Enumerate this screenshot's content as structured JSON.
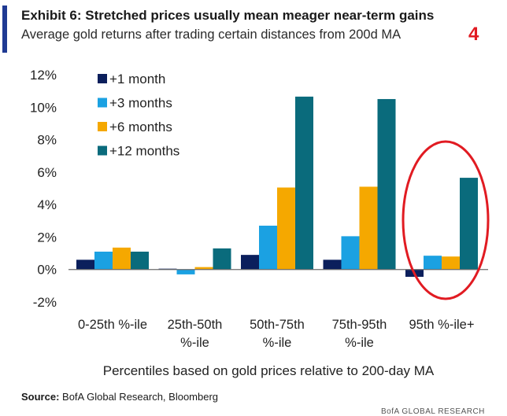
{
  "header": {
    "title": "Exhibit 6: Stretched prices usually mean meager near-term gains",
    "subtitle": "Average gold returns after trading certain distances from 200d MA",
    "page_number": "4"
  },
  "footer": {
    "source_label": "Source:",
    "source_text": "BofA Global Research, Bloomberg",
    "brand": "BofA GLOBAL RESEARCH"
  },
  "colors": {
    "accent": "#1f3a93",
    "page_number": "#e11b22",
    "highlight_circle": "#e11b22"
  },
  "annotation": {
    "type": "circle",
    "highlights_category": "95th %-ile+",
    "color": "#e11b22"
  },
  "chart_data": {
    "type": "bar",
    "title": "",
    "xlabel": "Percentiles based on gold prices relative to 200-day MA",
    "ylabel": "",
    "ylim": [
      -2,
      12
    ],
    "y_ticks": [
      -2,
      0,
      2,
      4,
      6,
      8,
      10,
      12
    ],
    "y_tick_labels": [
      "-2%",
      "0%",
      "2%",
      "4%",
      "6%",
      "8%",
      "10%",
      "12%"
    ],
    "grid": false,
    "legend_position": "top-left",
    "categories": [
      "0-25th %-ile",
      "25th-50th %-ile",
      "50th-75th %-ile",
      "75th-95th %-ile",
      "95th %-ile+"
    ],
    "category_lines": [
      [
        "0-25th %-ile"
      ],
      [
        "25th-50th",
        "%-ile"
      ],
      [
        "50th-75th",
        "%-ile"
      ],
      [
        "75th-95th",
        "%-ile"
      ],
      [
        "95th %-ile+"
      ]
    ],
    "series": [
      {
        "name": "+1 month",
        "color": "#0b1f5c",
        "values": [
          0.6,
          0.05,
          0.9,
          0.6,
          -0.45
        ]
      },
      {
        "name": "+3 months",
        "color": "#1ba1e2",
        "values": [
          1.1,
          -0.3,
          2.7,
          2.05,
          0.85
        ]
      },
      {
        "name": "+6 months",
        "color": "#f5a800",
        "values": [
          1.35,
          0.15,
          5.05,
          5.1,
          0.8
        ]
      },
      {
        "name": "+12 months",
        "color": "#0a6b7c",
        "values": [
          1.1,
          1.3,
          10.65,
          10.5,
          5.65
        ]
      }
    ]
  }
}
